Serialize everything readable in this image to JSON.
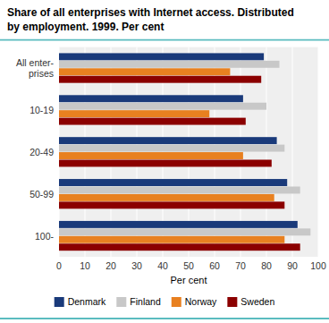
{
  "chart_data": {
    "type": "bar",
    "orientation": "horizontal",
    "title": "Share of all enterprises with Internet access. Distributed\nby employment. 1999. Per cent",
    "categories": [
      "All enter-\nprises",
      "10-19",
      "20-49",
      "50-99",
      "100-"
    ],
    "series": [
      {
        "name": "Denmark",
        "color": "#1a3a7a",
        "values": [
          79,
          71,
          84,
          88,
          92
        ]
      },
      {
        "name": "Finland",
        "color": "#c8c8c8",
        "values": [
          85,
          80,
          87,
          93,
          97
        ]
      },
      {
        "name": "Norway",
        "color": "#e88020",
        "values": [
          66,
          58,
          71,
          83,
          87
        ]
      },
      {
        "name": "Sweden",
        "color": "#8b0000",
        "values": [
          78,
          72,
          82,
          87,
          93
        ]
      }
    ],
    "x_label": "Per cent",
    "xlim": [
      0,
      100
    ],
    "xticks": [
      0,
      10,
      20,
      30,
      40,
      50,
      60,
      70,
      80,
      90,
      100
    ],
    "grid": true,
    "legend": "bottom"
  }
}
